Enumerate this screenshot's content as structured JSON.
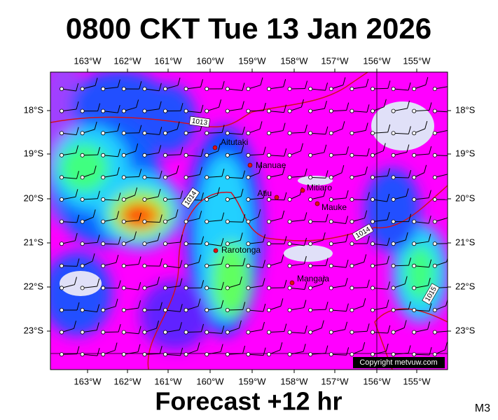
{
  "title": "0800 CKT Tue 13 Jan 2026",
  "footer": {
    "forecast": "Forecast +12 hr",
    "model": "M3"
  },
  "copyright": "Copyright metvuw.com",
  "axes": {
    "longitudes": [
      "163°W",
      "162°W",
      "161°W",
      "160°W",
      "159°W",
      "158°W",
      "157°W",
      "156°W",
      "155°W"
    ],
    "latitudes": [
      "18°S",
      "19°S",
      "20°S",
      "21°S",
      "22°S",
      "23°S"
    ]
  },
  "places": [
    {
      "label": "Aitutaki"
    },
    {
      "label": "Manuae"
    },
    {
      "label": "Atiu"
    },
    {
      "label": "Mitiaro"
    },
    {
      "label": "Mauke"
    },
    {
      "label": "Rarotonga"
    },
    {
      "label": "Mangaia"
    }
  ],
  "isobars": [
    {
      "label": "1013"
    },
    {
      "label": "1014"
    },
    {
      "label": "1014"
    },
    {
      "label": "1015"
    }
  ]
}
